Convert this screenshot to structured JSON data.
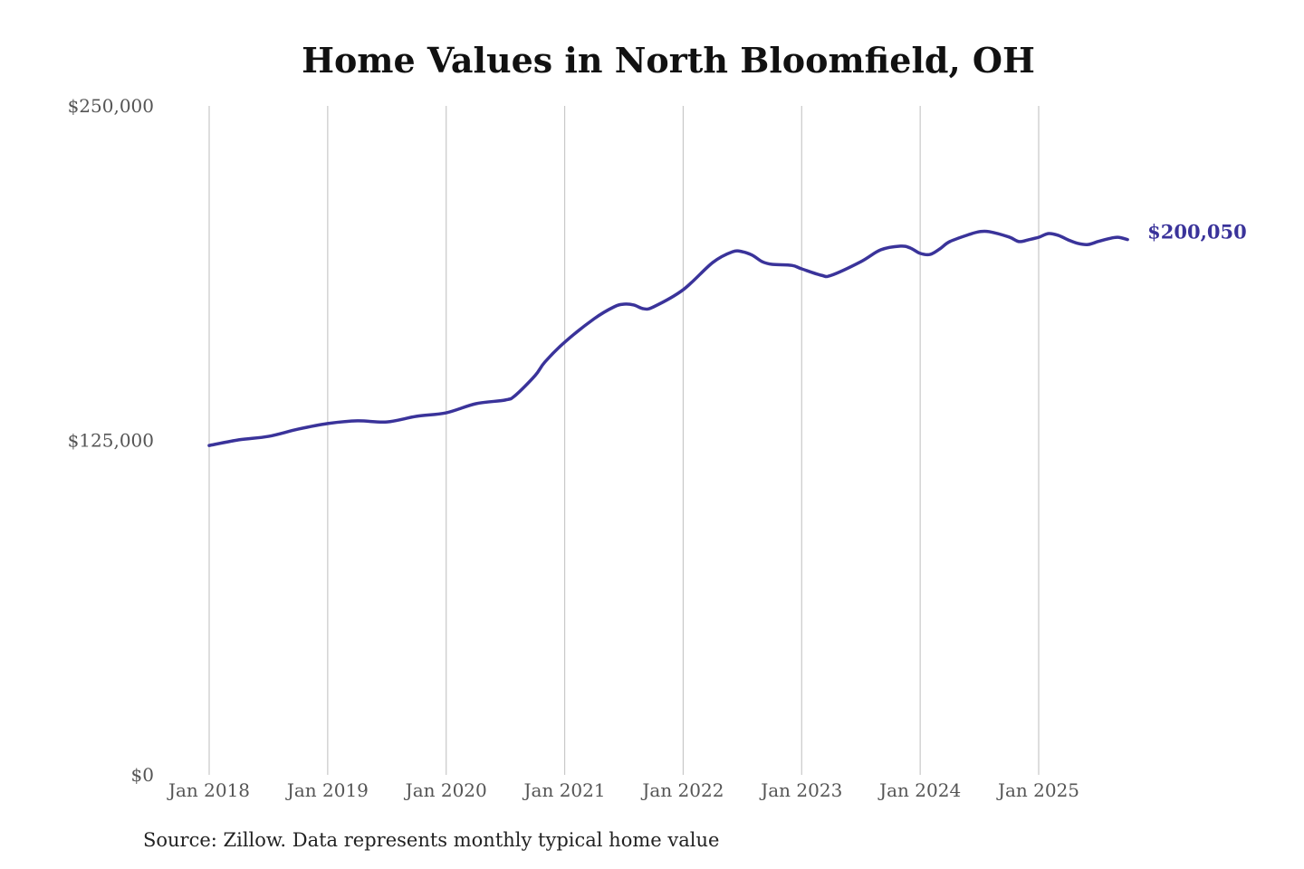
{
  "chart_data": {
    "type": "line",
    "title": "Home Values in North Bloomfield, OH",
    "source": "Source: Zillow. Data represents monthly typical home value",
    "xlabel": "",
    "ylabel": "",
    "ylim": [
      0,
      250000
    ],
    "y_ticks": [
      0,
      125000,
      250000
    ],
    "y_tick_labels": [
      "$0",
      "$125,000",
      "$250,000"
    ],
    "x_ticks": [
      "2018-01",
      "2019-01",
      "2020-01",
      "2021-01",
      "2022-01",
      "2023-01",
      "2024-01",
      "2025-01"
    ],
    "x_tick_labels": [
      "Jan 2018",
      "Jan 2019",
      "Jan 2020",
      "Jan 2021",
      "Jan 2022",
      "Jan 2023",
      "Jan 2024",
      "Jan 2025"
    ],
    "grid": "vertical",
    "line_color": "#3a339a",
    "end_label": "$200,050",
    "series": [
      {
        "x": [
          "2018-01",
          "2018-04",
          "2018-07",
          "2018-10",
          "2019-01",
          "2019-04",
          "2019-07",
          "2019-10",
          "2020-01",
          "2020-04",
          "2020-07",
          "2020-08",
          "2020-10",
          "2020-11",
          "2021-01",
          "2021-04",
          "2021-06",
          "2021-07",
          "2021-08",
          "2021-09",
          "2021-10",
          "2022-01",
          "2022-04",
          "2022-06",
          "2022-07",
          "2022-08",
          "2022-09",
          "2022-10",
          "2022-12",
          "2023-01",
          "2023-03",
          "2023-04",
          "2023-07",
          "2023-09",
          "2023-11",
          "2023-12",
          "2024-01",
          "2024-02",
          "2024-03",
          "2024-04",
          "2024-06",
          "2024-07",
          "2024-08",
          "2024-10",
          "2024-11",
          "2024-12",
          "2025-01",
          "2025-02",
          "2025-03",
          "2025-04",
          "2025-05",
          "2025-06",
          "2025-07",
          "2025-08",
          "2025-09",
          "2025-10"
        ],
        "values": [
          123100,
          125200,
          126500,
          129200,
          131300,
          132300,
          131900,
          134000,
          135300,
          138700,
          140100,
          141800,
          149200,
          154300,
          161700,
          170500,
          174900,
          175900,
          175600,
          174200,
          174900,
          181300,
          191500,
          195500,
          195500,
          194200,
          191800,
          190800,
          190400,
          189100,
          186700,
          186700,
          191800,
          196200,
          197600,
          196900,
          194900,
          194500,
          196600,
          199300,
          202000,
          203000,
          203000,
          201000,
          199300,
          200000,
          200900,
          202300,
          201600,
          199900,
          198600,
          198200,
          199300,
          200300,
          200900,
          200050
        ]
      }
    ]
  }
}
